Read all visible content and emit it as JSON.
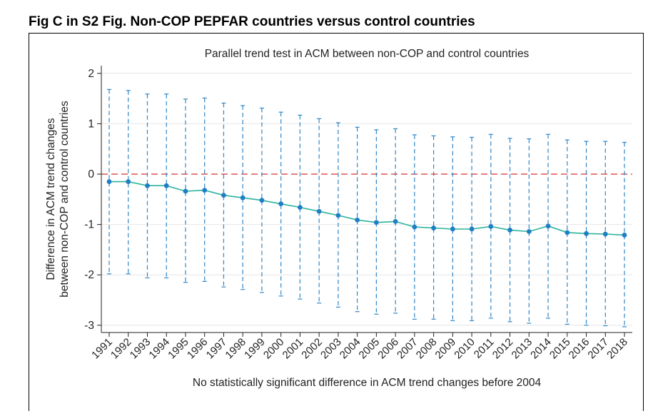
{
  "figure_title": "Fig C in S2 Fig. Non-COP PEPFAR countries versus control countries",
  "chart_data": {
    "type": "line",
    "title": "Parallel trend test in ACM between non-COP and control countries",
    "ylabel_line1": "Difference in ACM trend changes",
    "ylabel_line2": "between non-COP and control countries",
    "xlabel": "No statistically significant difference in ACM trend changes before 2004",
    "ylim": [
      -3.1,
      2.15
    ],
    "yticks": [
      2,
      1,
      0,
      -1,
      -2,
      -3
    ],
    "ytick_labels": [
      "2",
      "1",
      "0",
      "-1",
      "-2",
      "-3"
    ],
    "reference_line": 0,
    "grid": "horizontal",
    "colors": {
      "line": "#2ab39c",
      "marker": "#1f7fc4",
      "ci": "#2f86c8",
      "reference": "#e05252",
      "grid": "#e6e6e6"
    },
    "x": [
      "1991",
      "1992",
      "1993",
      "1994",
      "1995",
      "1996",
      "1997",
      "1998",
      "1999",
      "2000",
      "2001",
      "2002",
      "2003",
      "2004",
      "2005",
      "2006",
      "2007",
      "2008",
      "2009",
      "2010",
      "2011",
      "2012",
      "2013",
      "2014",
      "2015",
      "2016",
      "2017",
      "2018"
    ],
    "estimate": [
      -0.15,
      -0.15,
      -0.23,
      -0.23,
      -0.34,
      -0.32,
      -0.42,
      -0.47,
      -0.52,
      -0.59,
      -0.66,
      -0.74,
      -0.82,
      -0.91,
      -0.96,
      -0.94,
      -1.05,
      -1.07,
      -1.09,
      -1.09,
      -1.04,
      -1.11,
      -1.14,
      -1.03,
      -1.16,
      -1.18,
      -1.19,
      -1.21
    ],
    "ci_upper": [
      1.68,
      1.66,
      1.59,
      1.59,
      1.49,
      1.51,
      1.41,
      1.36,
      1.31,
      1.23,
      1.17,
      1.1,
      1.02,
      0.93,
      0.88,
      0.9,
      0.78,
      0.76,
      0.74,
      0.73,
      0.79,
      0.71,
      0.7,
      0.79,
      0.68,
      0.65,
      0.65,
      0.63
    ],
    "ci_lower": [
      -1.98,
      -1.98,
      -2.06,
      -2.06,
      -2.15,
      -2.13,
      -2.24,
      -2.29,
      -2.35,
      -2.42,
      -2.48,
      -2.56,
      -2.64,
      -2.73,
      -2.78,
      -2.76,
      -2.88,
      -2.88,
      -2.91,
      -2.91,
      -2.86,
      -2.93,
      -2.96,
      -2.86,
      -2.98,
      -3.0,
      -3.01,
      -3.03
    ]
  }
}
